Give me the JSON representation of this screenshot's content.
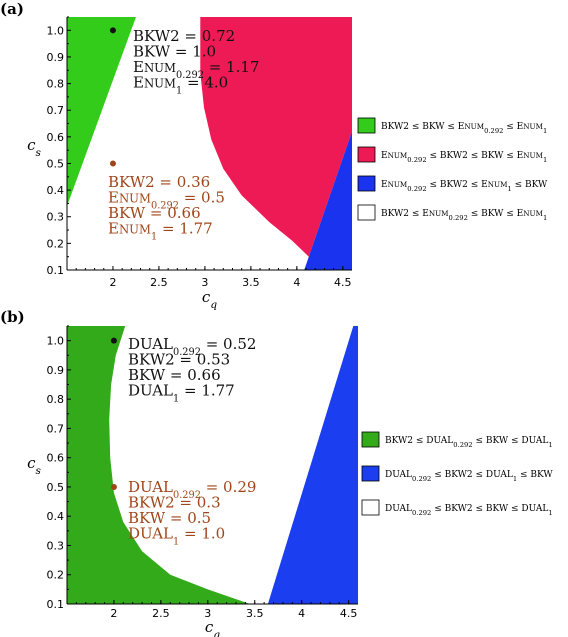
{
  "chart_data": [
    {
      "type": "area",
      "panel_label": "(a)",
      "xlabel": "c",
      "xlabel_sub": "q",
      "ylabel": "c",
      "ylabel_sub": "s",
      "xlim": [
        1.5,
        4.6
      ],
      "ylim": [
        0.1,
        1.05
      ],
      "x_ticks": [
        "2",
        "2.5",
        "3",
        "3.5",
        "4",
        "4.5"
      ],
      "y_ticks": [
        "1.0",
        "0.9",
        "0.8",
        "0.7",
        "0.6",
        "0.5",
        "0.4",
        "0.3",
        "0.2",
        "0.1"
      ],
      "regions": [
        {
          "name": "BKW2 ≤ BKW ≤ Enum0.292 ≤ Enum1",
          "color": "#33cc1a",
          "polygon": [
            [
              1.5,
              1.05
            ],
            [
              2.25,
              1.05
            ],
            [
              1.5,
              0.34
            ]
          ]
        },
        {
          "name": "Enum0.292 ≤ BKW2 ≤ BKW ≤ Enum1",
          "color": "#ee1a55",
          "polygon": [
            [
              2.97,
              1.05
            ],
            [
              4.6,
              1.05
            ],
            [
              4.6,
              0.62
            ],
            [
              4.13,
              0.15
            ],
            [
              3.95,
              0.21
            ],
            [
              3.7,
              0.28
            ],
            [
              3.4,
              0.38
            ],
            [
              3.2,
              0.48
            ],
            [
              3.07,
              0.59
            ],
            [
              2.99,
              0.71
            ],
            [
              2.95,
              0.84
            ],
            [
              2.95,
              1.05
            ]
          ]
        },
        {
          "name": "Enum0.292 ≤ BKW2 ≤ Enum1 ≤ BKW",
          "color": "#1a33ee",
          "polygon": [
            [
              4.6,
              0.62
            ],
            [
              4.6,
              0.1
            ],
            [
              4.08,
              0.1
            ],
            [
              4.13,
              0.15
            ]
          ]
        }
      ],
      "legend_entries": [
        {
          "label_parts": [
            "BKW2 ≤ BKW ≤ E",
            "NUM",
            "0.292",
            " ≤ E",
            "NUM",
            "1"
          ],
          "color": "#33cc1a"
        },
        {
          "label_parts": [
            "E",
            "NUM",
            "0.292",
            " ≤ BKW2 ≤ BKW ≤ E",
            "NUM",
            "1"
          ],
          "color": "#ee1a55"
        },
        {
          "label_parts": [
            "E",
            "NUM",
            "0.292",
            " ≤ BKW2 ≤ E",
            "NUM",
            "1",
            " ≤ BKW"
          ],
          "color": "#1a33ee"
        },
        {
          "label_parts": [
            "BKW2 ≤ E",
            "NUM",
            "0.292",
            " ≤ BKW ≤ E",
            "NUM",
            "1"
          ],
          "color": "#ffffff"
        }
      ],
      "points": [
        {
          "x": 2.0,
          "y": 1.0,
          "color": "#111111",
          "lines": [
            {
              "parts": [
                "BKW2 = 0.72"
              ]
            },
            {
              "parts": [
                "BKW = 1.0"
              ]
            },
            {
              "parts": [
                "E",
                "NUM",
                "0.292",
                " = 1.17"
              ]
            },
            {
              "parts": [
                "E",
                "NUM",
                "1",
                " = 4.0"
              ]
            }
          ]
        },
        {
          "x": 2.0,
          "y": 0.5,
          "color": "#a0451a",
          "lines": [
            {
              "parts": [
                "BKW2 = 0.36"
              ]
            },
            {
              "parts": [
                "E",
                "NUM",
                "0.292",
                " = 0.5"
              ]
            },
            {
              "parts": [
                "BKW = 0.66"
              ]
            },
            {
              "parts": [
                "E",
                "NUM",
                "1",
                " = 1.77"
              ]
            }
          ]
        }
      ]
    },
    {
      "type": "area",
      "panel_label": "(b)",
      "xlabel": "c",
      "xlabel_sub": "q",
      "ylabel": "c",
      "ylabel_sub": "s",
      "xlim": [
        1.5,
        4.6
      ],
      "ylim": [
        0.1,
        1.05
      ],
      "x_ticks": [
        "2",
        "2.5",
        "3",
        "3.5",
        "4",
        "4.5"
      ],
      "y_ticks": [
        "1.0",
        "0.9",
        "0.8",
        "0.7",
        "0.6",
        "0.5",
        "0.4",
        "0.3",
        "0.2",
        "0.1"
      ],
      "regions": [
        {
          "name": "BKW2 ≤ DUAL0.292 ≤ BKW ≤ DUAL1",
          "color": "#33aa1a",
          "polygon": [
            [
              1.5,
              1.05
            ],
            [
              2.12,
              1.05
            ],
            [
              2.02,
              0.95
            ],
            [
              1.97,
              0.85
            ],
            [
              1.95,
              0.73
            ],
            [
              1.96,
              0.6
            ],
            [
              2.0,
              0.48
            ],
            [
              2.1,
              0.38
            ],
            [
              2.3,
              0.28
            ],
            [
              2.6,
              0.2
            ],
            [
              3.0,
              0.15
            ],
            [
              3.45,
              0.1
            ],
            [
              1.5,
              0.1
            ]
          ]
        },
        {
          "name": "DUAL0.292 ≤ BKW2 ≤ DUAL1 ≤ BKW",
          "color": "#1a3ef0",
          "polygon": [
            [
              4.55,
              1.05
            ],
            [
              4.6,
              1.05
            ],
            [
              4.6,
              0.1
            ],
            [
              3.64,
              0.1
            ]
          ]
        }
      ],
      "legend_entries": [
        {
          "label_parts": [
            "BKW2 ≤ DUAL",
            "0.292",
            " ≤ BKW ≤ DUAL",
            "1"
          ],
          "color": "#33aa1a"
        },
        {
          "label_parts": [
            "DUAL",
            "0.292",
            " ≤ BKW2 ≤ DUAL",
            "1",
            " ≤ BKW"
          ],
          "color": "#1a3ef0"
        },
        {
          "label_parts": [
            "DUAL",
            "0.292",
            " ≤ BKW2 ≤ BKW ≤ DUAL",
            "1"
          ],
          "color": "#ffffff"
        }
      ],
      "points": [
        {
          "x": 2.0,
          "y": 1.0,
          "color": "#111111",
          "lines": [
            {
              "parts": [
                "DUAL",
                "0.292",
                " = 0.52"
              ]
            },
            {
              "parts": [
                "BKW2 = 0.53"
              ]
            },
            {
              "parts": [
                "BKW = 0.66"
              ]
            },
            {
              "parts": [
                "DUAL",
                "1",
                " = 1.77"
              ]
            }
          ]
        },
        {
          "x": 2.0,
          "y": 0.5,
          "color": "#a0451a",
          "lines": [
            {
              "parts": [
                "DUAL",
                "0.292",
                " = 0.29"
              ]
            },
            {
              "parts": [
                "BKW2 = 0.3"
              ]
            },
            {
              "parts": [
                "BKW = 0.5"
              ]
            },
            {
              "parts": [
                "DUAL",
                "1",
                " = 1.0"
              ]
            }
          ]
        }
      ]
    }
  ]
}
